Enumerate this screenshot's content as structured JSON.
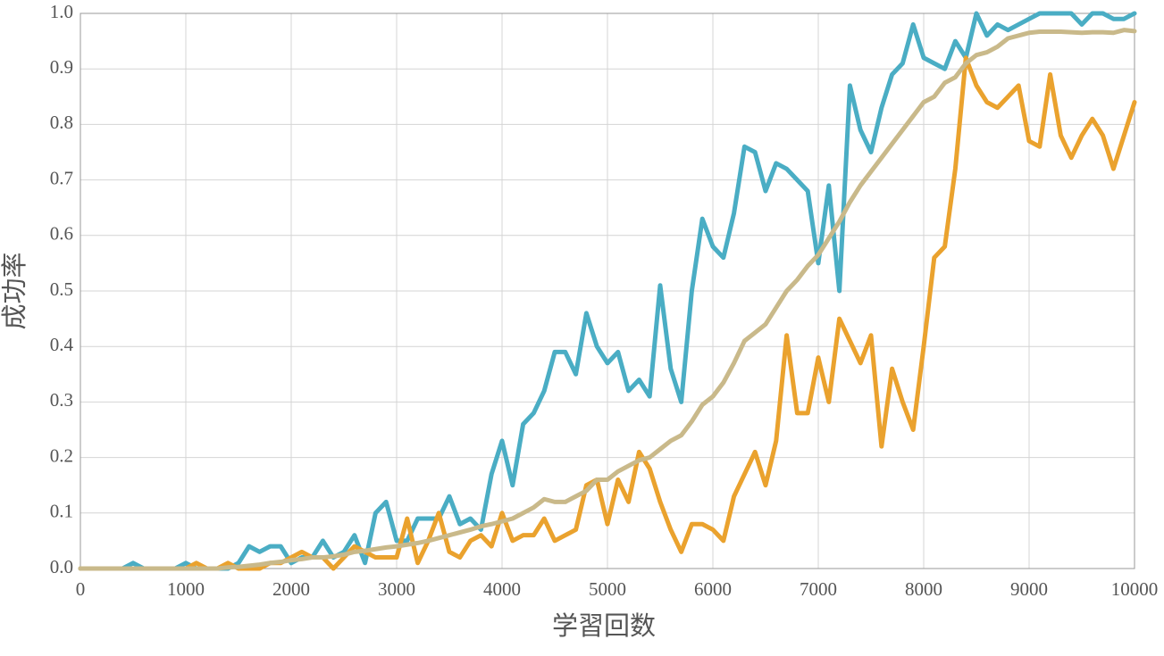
{
  "chart_data": {
    "type": "line",
    "xlabel": "学習回数",
    "ylabel": "成功率",
    "x": [
      0,
      100,
      200,
      300,
      400,
      500,
      600,
      700,
      800,
      900,
      1000,
      1100,
      1200,
      1300,
      1400,
      1500,
      1600,
      1700,
      1800,
      1900,
      2000,
      2100,
      2200,
      2300,
      2400,
      2500,
      2600,
      2700,
      2800,
      2900,
      3000,
      3100,
      3200,
      3300,
      3400,
      3500,
      3600,
      3700,
      3800,
      3900,
      4000,
      4100,
      4200,
      4300,
      4400,
      4500,
      4600,
      4700,
      4800,
      4900,
      5000,
      5100,
      5200,
      5300,
      5400,
      5500,
      5600,
      5700,
      5800,
      5900,
      6000,
      6100,
      6200,
      6300,
      6400,
      6500,
      6600,
      6700,
      6800,
      6900,
      7000,
      7100,
      7200,
      7300,
      7400,
      7500,
      7600,
      7700,
      7800,
      7900,
      8000,
      8100,
      8200,
      8300,
      8400,
      8500,
      8600,
      8700,
      8800,
      8900,
      9000,
      9100,
      9200,
      9300,
      9400,
      9500,
      9600,
      9700,
      9800,
      9900,
      10000
    ],
    "series": [
      {
        "color": "#4aadc4",
        "values": [
          0,
          0,
          0,
          0,
          0,
          0.01,
          0,
          0,
          0,
          0,
          0.01,
          0,
          0,
          0,
          0,
          0.01,
          0.04,
          0.03,
          0.04,
          0.04,
          0.01,
          0.02,
          0.02,
          0.05,
          0.02,
          0.03,
          0.06,
          0.01,
          0.1,
          0.12,
          0.05,
          0.05,
          0.09,
          0.09,
          0.09,
          0.13,
          0.08,
          0.09,
          0.07,
          0.17,
          0.23,
          0.15,
          0.26,
          0.28,
          0.32,
          0.39,
          0.39,
          0.35,
          0.46,
          0.4,
          0.37,
          0.39,
          0.32,
          0.34,
          0.31,
          0.51,
          0.36,
          0.3,
          0.5,
          0.63,
          0.58,
          0.56,
          0.64,
          0.76,
          0.75,
          0.68,
          0.73,
          0.72,
          0.7,
          0.68,
          0.55,
          0.69,
          0.5,
          0.87,
          0.79,
          0.75,
          0.83,
          0.89,
          0.91,
          0.98,
          0.92,
          0.91,
          0.9,
          0.95,
          0.92,
          1,
          0.96,
          0.98,
          0.97,
          0.98,
          0.99,
          1,
          1,
          1,
          1,
          0.98,
          1,
          1,
          0.99,
          0.99,
          1
        ]
      },
      {
        "color": "#eaa22e",
        "values": [
          0,
          0,
          0,
          0,
          0,
          0,
          0,
          0,
          0,
          0,
          0,
          0.01,
          0,
          0,
          0.01,
          0,
          0,
          0,
          0.01,
          0.01,
          0.02,
          0.03,
          0.02,
          0.02,
          0,
          0.02,
          0.04,
          0.03,
          0.02,
          0.02,
          0.02,
          0.09,
          0.01,
          0.05,
          0.1,
          0.03,
          0.02,
          0.05,
          0.06,
          0.04,
          0.1,
          0.05,
          0.06,
          0.06,
          0.09,
          0.05,
          0.06,
          0.07,
          0.15,
          0.16,
          0.08,
          0.16,
          0.12,
          0.21,
          0.18,
          0.12,
          0.07,
          0.03,
          0.08,
          0.08,
          0.07,
          0.05,
          0.13,
          0.17,
          0.21,
          0.15,
          0.23,
          0.42,
          0.28,
          0.28,
          0.38,
          0.3,
          0.45,
          0.41,
          0.37,
          0.42,
          0.22,
          0.36,
          0.3,
          0.25,
          0.4,
          0.56,
          0.58,
          0.72,
          0.92,
          0.87,
          0.84,
          0.83,
          0.85,
          0.87,
          0.77,
          0.76,
          0.89,
          0.78,
          0.74,
          0.78,
          0.81,
          0.78,
          0.72,
          0.78,
          0.84
        ]
      },
      {
        "color": "#c9b98a",
        "values": [
          0,
          0,
          0,
          0,
          0,
          0,
          0,
          0,
          0,
          0,
          0,
          0,
          0,
          0,
          0.002,
          0.003,
          0.005,
          0.007,
          0.01,
          0.012,
          0.015,
          0.017,
          0.02,
          0.02,
          0.022,
          0.025,
          0.03,
          0.032,
          0.035,
          0.038,
          0.04,
          0.043,
          0.046,
          0.05,
          0.055,
          0.06,
          0.065,
          0.07,
          0.076,
          0.08,
          0.085,
          0.09,
          0.1,
          0.11,
          0.125,
          0.12,
          0.12,
          0.13,
          0.14,
          0.16,
          0.16,
          0.175,
          0.185,
          0.195,
          0.2,
          0.215,
          0.23,
          0.24,
          0.265,
          0.295,
          0.31,
          0.335,
          0.37,
          0.41,
          0.425,
          0.44,
          0.47,
          0.5,
          0.52,
          0.545,
          0.565,
          0.595,
          0.625,
          0.66,
          0.69,
          0.715,
          0.74,
          0.765,
          0.79,
          0.815,
          0.84,
          0.85,
          0.875,
          0.885,
          0.91,
          0.925,
          0.93,
          0.94,
          0.955,
          0.96,
          0.965,
          0.967,
          0.967,
          0.967,
          0.966,
          0.965,
          0.966,
          0.966,
          0.965,
          0.97,
          0.968
        ]
      }
    ],
    "xlim": [
      0,
      10000
    ],
    "ylim": [
      0,
      1
    ],
    "xticks": [
      0,
      1000,
      2000,
      3000,
      4000,
      5000,
      6000,
      7000,
      8000,
      9000,
      10000
    ],
    "yticks": [
      {
        "value": 0,
        "label": "0.0"
      },
      0.1,
      0.2,
      0.3,
      0.4,
      0.5,
      0.6,
      0.7,
      0.8,
      0.9,
      {
        "value": 1,
        "label": "1.0"
      }
    ],
    "grid": true
  }
}
